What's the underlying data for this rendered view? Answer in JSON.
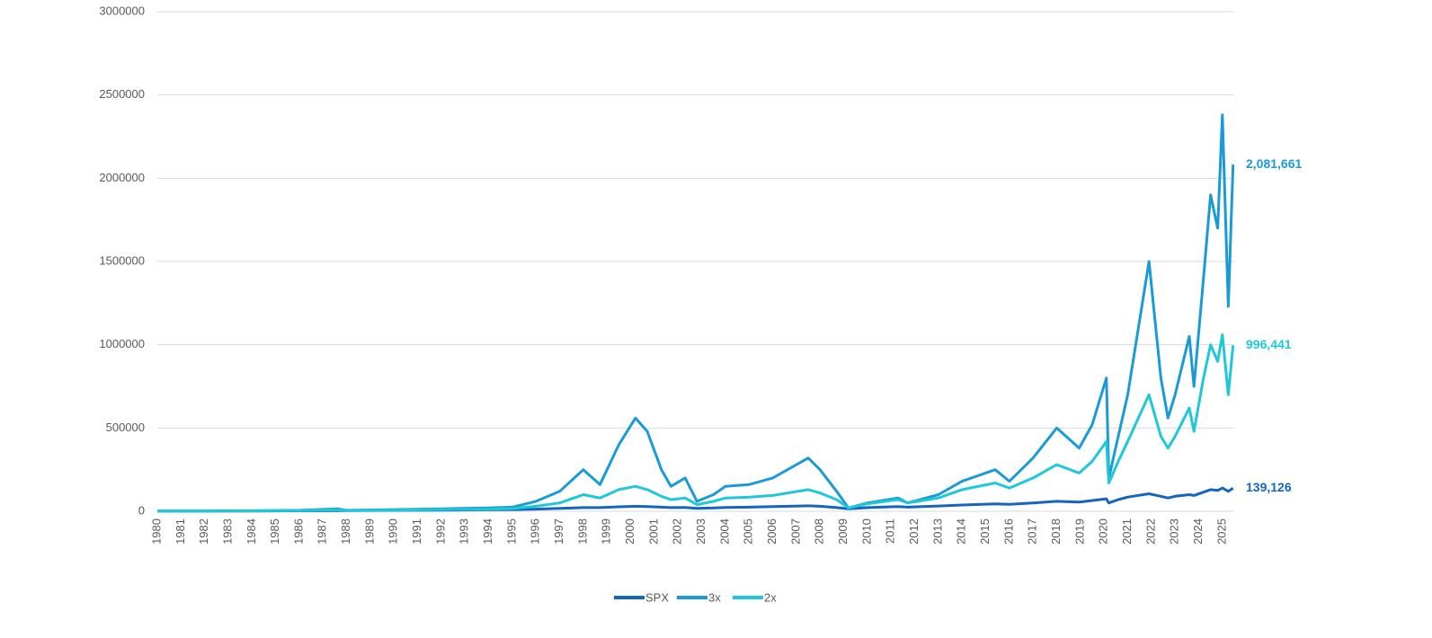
{
  "chart_data": {
    "type": "line",
    "x": [
      1980,
      1982,
      1984,
      1986,
      1987.6,
      1988,
      1990,
      1992,
      1994,
      1995,
      1996,
      1997,
      1998,
      1998.7,
      1999.5,
      2000.2,
      2000.7,
      2001.3,
      2001.7,
      2002.3,
      2002.8,
      2003.5,
      2004,
      2005,
      2006,
      2007.5,
      2008,
      2008.7,
      2009.2,
      2010,
      2011.3,
      2011.7,
      2013,
      2014,
      2015.4,
      2016,
      2017,
      2018,
      2018.95,
      2019.5,
      2020.1,
      2020.2,
      2020.6,
      2021,
      2021.9,
      2022.4,
      2022.7,
      2023,
      2023.6,
      2023.8,
      2024.2,
      2024.5,
      2024.8,
      2025,
      2025.25,
      2025.45
    ],
    "xlim": [
      1980,
      2025.5
    ],
    "xticks": [
      1980,
      1981,
      1982,
      1983,
      1984,
      1985,
      1986,
      1987,
      1988,
      1989,
      1990,
      1991,
      1992,
      1993,
      1994,
      1995,
      1996,
      1997,
      1998,
      1999,
      2000,
      2001,
      2002,
      2003,
      2004,
      2005,
      2006,
      2007,
      2008,
      2009,
      2010,
      2011,
      2012,
      2013,
      2014,
      2015,
      2016,
      2017,
      2018,
      2019,
      2020,
      2021,
      2022,
      2023,
      2024,
      2025
    ],
    "ylim": [
      0,
      3000000
    ],
    "yticks": [
      0,
      500000,
      1000000,
      1500000,
      2000000,
      2500000,
      3000000
    ],
    "grid": true,
    "legend": "bottom",
    "series": [
      {
        "name": "SPX",
        "color": "#1565c0",
        "values": [
          1000,
          1200,
          1800,
          2800,
          4500,
          3800,
          5500,
          7000,
          9000,
          10000,
          13000,
          17000,
          22000,
          22000,
          27000,
          30000,
          28000,
          25000,
          22000,
          23000,
          17000,
          20000,
          23000,
          25000,
          28000,
          33000,
          30000,
          22000,
          15000,
          22000,
          28000,
          25000,
          32000,
          38000,
          45000,
          42000,
          50000,
          60000,
          55000,
          65000,
          75000,
          50000,
          70000,
          85000,
          105000,
          90000,
          80000,
          90000,
          100000,
          95000,
          115000,
          130000,
          125000,
          140000,
          120000,
          139126
        ],
        "value_labels": [
          null,
          null,
          null,
          null,
          null,
          null,
          null,
          null,
          null,
          null,
          null,
          null,
          null,
          null,
          null,
          null,
          null,
          null,
          null,
          null,
          null,
          null,
          null,
          null,
          null,
          null,
          null,
          null,
          null,
          null,
          null,
          null,
          null,
          null,
          null,
          null,
          null,
          null,
          null,
          null,
          null,
          null,
          null,
          null,
          null,
          null,
          null,
          null,
          null,
          null,
          null,
          null,
          null,
          null,
          null,
          "139,126"
        ]
      },
      {
        "name": "3x",
        "color": "#1a9bd7",
        "values": [
          1000,
          1500,
          3000,
          6000,
          15000,
          6000,
          10000,
          15000,
          20000,
          25000,
          60000,
          120000,
          250000,
          160000,
          400000,
          560000,
          480000,
          250000,
          150000,
          200000,
          60000,
          100000,
          150000,
          160000,
          200000,
          320000,
          250000,
          120000,
          20000,
          50000,
          80000,
          50000,
          100000,
          180000,
          250000,
          180000,
          320000,
          500000,
          380000,
          520000,
          800000,
          200000,
          450000,
          700000,
          1500000,
          800000,
          560000,
          700000,
          1050000,
          750000,
          1400000,
          1900000,
          1700000,
          2380000,
          1230000,
          2081661
        ],
        "value_labels": [
          null,
          null,
          null,
          null,
          null,
          null,
          null,
          null,
          null,
          null,
          null,
          null,
          null,
          null,
          null,
          null,
          null,
          null,
          null,
          null,
          null,
          null,
          null,
          null,
          null,
          null,
          null,
          null,
          null,
          null,
          null,
          null,
          null,
          null,
          null,
          null,
          null,
          null,
          null,
          null,
          null,
          null,
          null,
          null,
          null,
          null,
          null,
          null,
          null,
          null,
          null,
          null,
          null,
          null,
          null,
          "2,081,661"
        ]
      },
      {
        "name": "2x",
        "color": "#1ec8d8",
        "values": [
          1000,
          1300,
          2500,
          4500,
          9000,
          5000,
          7000,
          10000,
          13000,
          16000,
          30000,
          50000,
          100000,
          80000,
          130000,
          150000,
          130000,
          90000,
          70000,
          80000,
          40000,
          60000,
          80000,
          85000,
          95000,
          130000,
          110000,
          70000,
          20000,
          45000,
          70000,
          50000,
          80000,
          130000,
          170000,
          140000,
          200000,
          280000,
          230000,
          300000,
          420000,
          170000,
          300000,
          420000,
          700000,
          450000,
          380000,
          450000,
          620000,
          480000,
          800000,
          1000000,
          900000,
          1060000,
          700000,
          996441
        ],
        "value_labels": [
          null,
          null,
          null,
          null,
          null,
          null,
          null,
          null,
          null,
          null,
          null,
          null,
          null,
          null,
          null,
          null,
          null,
          null,
          null,
          null,
          null,
          null,
          null,
          null,
          null,
          null,
          null,
          null,
          null,
          null,
          null,
          null,
          null,
          null,
          null,
          null,
          null,
          null,
          null,
          null,
          null,
          null,
          null,
          null,
          null,
          null,
          null,
          null,
          null,
          null,
          null,
          null,
          null,
          null,
          null,
          "996,441"
        ]
      }
    ]
  }
}
